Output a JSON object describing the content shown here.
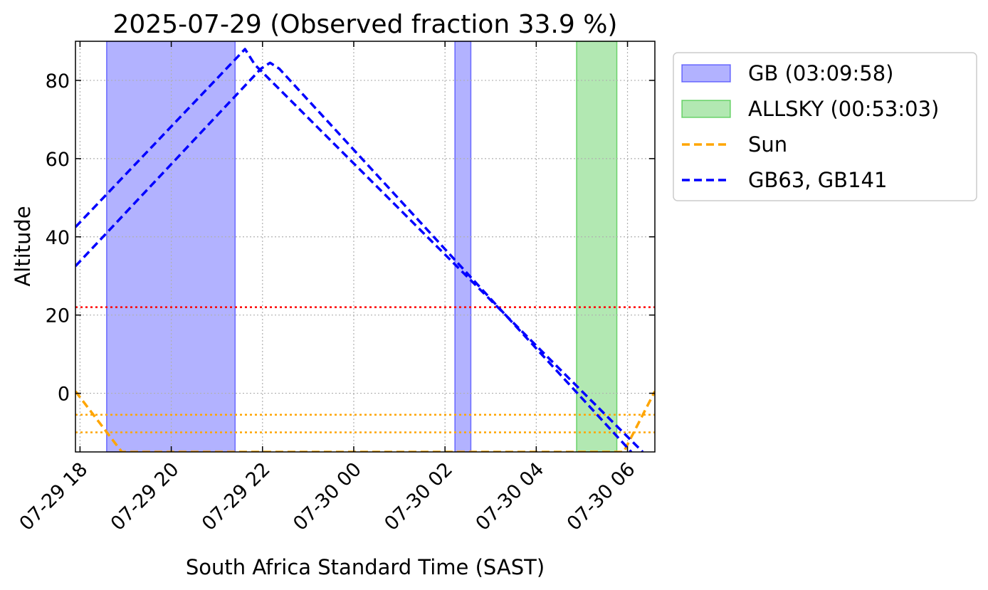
{
  "chart_data": {
    "type": "line",
    "title": "2025-07-29 (Observed fraction 33.9 %)",
    "xlabel": "South Africa Standard Time (SAST)",
    "ylabel": "Altitude",
    "xlim": [
      "2025-07-29 17:54",
      "2025-07-30 06:36"
    ],
    "ylim": [
      -15,
      90
    ],
    "grid": true,
    "legend_position": "outside-right",
    "x_ticks": [
      {
        "time": "2025-07-29 18:00",
        "label": "07-29 18"
      },
      {
        "time": "2025-07-29 20:00",
        "label": "07-29 20"
      },
      {
        "time": "2025-07-29 22:00",
        "label": "07-29 22"
      },
      {
        "time": "2025-07-30 00:00",
        "label": "07-30 00"
      },
      {
        "time": "2025-07-30 02:00",
        "label": "07-30 02"
      },
      {
        "time": "2025-07-30 04:00",
        "label": "07-30 04"
      },
      {
        "time": "2025-07-30 06:00",
        "label": "07-30 06"
      }
    ],
    "y_ticks": [
      {
        "value": 0,
        "label": "0"
      },
      {
        "value": 20,
        "label": "20"
      },
      {
        "value": 40,
        "label": "40"
      },
      {
        "value": 60,
        "label": "60"
      },
      {
        "value": 80,
        "label": "80"
      }
    ],
    "spans": [
      {
        "name": "GB (03:09:58)",
        "group": "GB",
        "start": "2025-07-29 18:35",
        "end": "2025-07-29 21:24",
        "color": "#0000ff",
        "alpha": 0.3
      },
      {
        "group": "GB",
        "start": "2025-07-30 02:13",
        "end": "2025-07-30 02:34",
        "color": "#0000ff",
        "alpha": 0.3
      },
      {
        "name": "ALLSKY (00:53:03)",
        "group": "ALLSKY",
        "start": "2025-07-30 04:53",
        "end": "2025-07-30 05:46",
        "color": "#00b400",
        "alpha": 0.3
      }
    ],
    "series": [
      {
        "name": "Sun",
        "color": "#ffa500",
        "style": "dashed",
        "points": [
          [
            "2025-07-29 17:54",
            0.5
          ],
          [
            "2025-07-29 18:55",
            -15
          ],
          [
            "2025-07-30 05:55",
            -15
          ],
          [
            "2025-07-30 06:36",
            0.5
          ]
        ]
      },
      {
        "name": "GB63, GB141",
        "color": "#0000ff",
        "style": "dashed",
        "points": [
          [
            "2025-07-29 17:54",
            42.5
          ],
          [
            "2025-07-29 21:37",
            88
          ],
          [
            "2025-07-29 21:50",
            84
          ],
          [
            "2025-07-30 06:20",
            -15
          ]
        ]
      },
      {
        "legend": false,
        "color": "#0000ff",
        "style": "dashed",
        "points": [
          [
            "2025-07-29 17:54",
            32.5
          ],
          [
            "2025-07-29 21:58",
            83
          ],
          [
            "2025-07-29 22:10",
            84.5
          ],
          [
            "2025-07-29 22:22",
            83
          ],
          [
            "2025-07-30 06:05",
            -15
          ]
        ]
      }
    ],
    "hlines": [
      {
        "value": 22,
        "color": "#ff0000",
        "style": "dotted"
      },
      {
        "value": -5.5,
        "color": "#ffa500",
        "style": "dotted"
      },
      {
        "value": -10,
        "color": "#ffa500",
        "style": "dotted"
      }
    ],
    "legend": [
      {
        "label": "GB (03:09:58)",
        "kind": "patch",
        "color": "#0000ff"
      },
      {
        "label": "ALLSKY (00:53:03)",
        "kind": "patch",
        "color": "#00b400"
      },
      {
        "label": "Sun",
        "kind": "line",
        "color": "#ffa500"
      },
      {
        "label": "GB63, GB141",
        "kind": "line",
        "color": "#0000ff"
      }
    ]
  }
}
